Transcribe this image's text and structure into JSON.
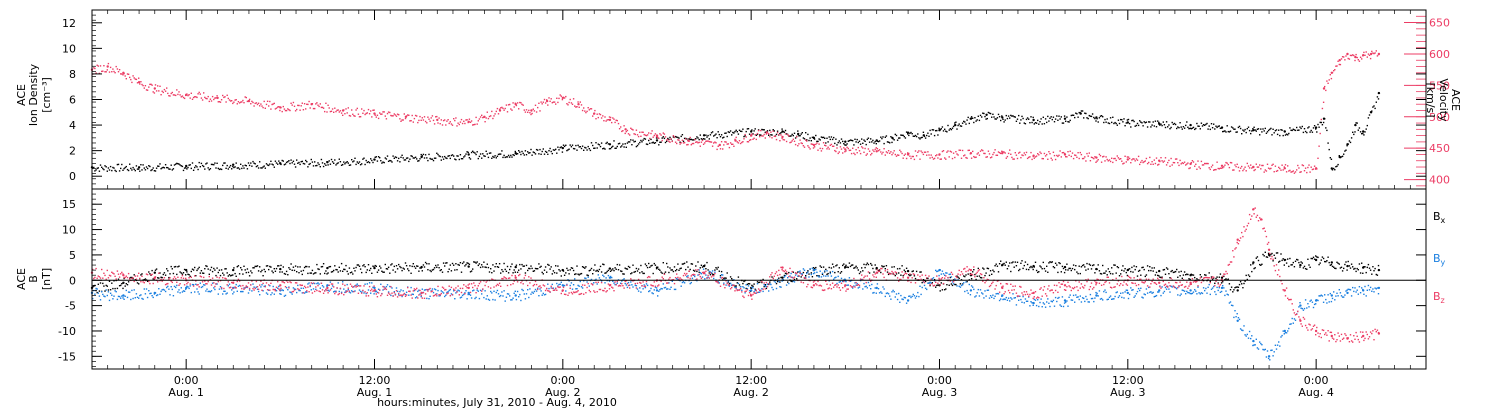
{
  "colors": {
    "black": "#000000",
    "blue": "#1a7fe0",
    "red": "#ec3c64",
    "axis": "#000000"
  },
  "chart_data": [
    {
      "type": "scatter",
      "panel": "top",
      "ylabel_left": [
        "ACE",
        "Ion Density",
        "[cm⁻³]"
      ],
      "ylabel_right": [
        "ACE",
        "Velocity",
        "[km/s]"
      ],
      "xlim_hours": [
        -6,
        79
      ],
      "ylim_left": [
        -1,
        13
      ],
      "ylim_right": [
        385,
        670
      ],
      "yticks_left": [
        0,
        2,
        4,
        6,
        8,
        10,
        12
      ],
      "yticks_right": [
        400,
        450,
        500,
        550,
        600,
        650
      ],
      "series": [
        {
          "axis": "left",
          "color": "black",
          "x": [
            -6,
            -3,
            0,
            3,
            6,
            9,
            12,
            15,
            18,
            21,
            24,
            27,
            30,
            33,
            36,
            38,
            39,
            40,
            42,
            44,
            45,
            46,
            47,
            48,
            49,
            50,
            51,
            52,
            54,
            56,
            57,
            58,
            60,
            62,
            64,
            66,
            68,
            70,
            72,
            72.5,
            73,
            73.5,
            74,
            74.5,
            75,
            75.5,
            76
          ],
          "y": [
            0.7,
            0.7,
            0.8,
            0.9,
            1.0,
            1.1,
            1.3,
            1.5,
            1.7,
            1.8,
            2.2,
            2.5,
            2.8,
            3.2,
            3.5,
            3.5,
            3.3,
            3.0,
            2.7,
            2.8,
            3.0,
            3.4,
            3.2,
            3.6,
            4.0,
            4.5,
            4.8,
            4.6,
            4.4,
            4.5,
            4.9,
            4.6,
            4.2,
            4.1,
            4.0,
            3.8,
            3.6,
            3.5,
            3.8,
            4.5,
            0.6,
            1.5,
            2.5,
            4.0,
            3.5,
            5.0,
            6.5
          ]
        },
        {
          "axis": "right",
          "color": "red",
          "x": [
            -6,
            -5,
            -4,
            -3,
            -2,
            0,
            2,
            4,
            6,
            8,
            10,
            12,
            14,
            16,
            18,
            19,
            20,
            21,
            22,
            23,
            24,
            25,
            26,
            27,
            28,
            30,
            32,
            34,
            35,
            36,
            37,
            38,
            40,
            42,
            44,
            46,
            48,
            50,
            52,
            54,
            56,
            58,
            60,
            62,
            64,
            66,
            68,
            70,
            72,
            72.5,
            73,
            73.5,
            74,
            74.5,
            75,
            75.5,
            76
          ],
          "y": [
            575,
            580,
            570,
            555,
            545,
            535,
            530,
            525,
            515,
            520,
            510,
            505,
            500,
            495,
            492,
            500,
            510,
            520,
            510,
            525,
            530,
            520,
            505,
            495,
            480,
            470,
            462,
            455,
            462,
            470,
            475,
            468,
            455,
            448,
            445,
            440,
            440,
            442,
            442,
            438,
            440,
            435,
            432,
            430,
            425,
            422,
            420,
            418,
            418,
            545,
            570,
            590,
            600,
            595,
            598,
            600,
            600
          ]
        }
      ]
    },
    {
      "type": "scatter",
      "panel": "bottom",
      "ylabel_left": [
        "ACE",
        "B",
        "[nT]"
      ],
      "xlim_hours": [
        -6,
        79
      ],
      "ylim": [
        -17.5,
        18
      ],
      "yticks": [
        -15,
        -10,
        -5,
        0,
        5,
        10,
        15
      ],
      "xticks": [
        {
          "hour": 0,
          "time": "0:00",
          "date": "Aug. 1"
        },
        {
          "hour": 12,
          "time": "12:00",
          "date": "Aug. 1"
        },
        {
          "hour": 24,
          "time": "0:00",
          "date": "Aug. 2"
        },
        {
          "hour": 36,
          "time": "12:00",
          "date": "Aug. 2"
        },
        {
          "hour": 48,
          "time": "0:00",
          "date": "Aug. 3"
        },
        {
          "hour": 60,
          "time": "12:00",
          "date": "Aug. 3"
        },
        {
          "hour": 72,
          "time": "0:00",
          "date": "Aug. 4"
        }
      ],
      "xlabel": "hours:minutes, July 31, 2010 - Aug.  4, 2010",
      "zero_line": 0,
      "series": [
        {
          "name": "Bx",
          "color": "black",
          "x": [
            -6,
            -4,
            -2,
            0,
            3,
            6,
            9,
            12,
            15,
            18,
            21,
            24,
            27,
            30,
            33,
            36,
            38,
            40,
            42,
            44,
            46,
            48,
            50,
            52,
            54,
            56,
            58,
            60,
            62,
            64,
            66,
            67,
            68,
            69,
            70,
            71,
            72,
            73,
            74,
            75,
            76
          ],
          "y": [
            -1.5,
            -0.5,
            1.5,
            2.0,
            2.0,
            2.2,
            2.4,
            2.4,
            2.6,
            2.7,
            2.6,
            2.0,
            2.3,
            2.5,
            2.8,
            -1.5,
            0.5,
            2.0,
            2.6,
            2.4,
            1.8,
            -1.0,
            1.0,
            3.0,
            2.8,
            2.6,
            2.2,
            2.0,
            1.8,
            1.0,
            0.5,
            -2.0,
            3.5,
            5.0,
            4.0,
            3.0,
            4.0,
            3.5,
            2.8,
            2.5,
            2.0
          ]
        },
        {
          "name": "By",
          "color": "blue",
          "x": [
            -6,
            -4,
            -2,
            0,
            3,
            6,
            9,
            12,
            15,
            18,
            21,
            24,
            27,
            30,
            33,
            36,
            38,
            40,
            42,
            44,
            46,
            48,
            50,
            52,
            54,
            56,
            58,
            60,
            62,
            64,
            66,
            67,
            68,
            69,
            70,
            71,
            72,
            73,
            74,
            75,
            76
          ],
          "y": [
            -2.5,
            -3.0,
            -2.5,
            -1.5,
            -1.5,
            -2.0,
            -1.0,
            -1.5,
            -2.5,
            -2.5,
            -3.0,
            -1.0,
            0.5,
            -2.0,
            1.5,
            -2.0,
            0.0,
            2.0,
            0.0,
            -1.5,
            -4.0,
            2.0,
            -2.0,
            -3.0,
            -4.5,
            -4.0,
            -3.0,
            -2.5,
            -2.0,
            -2.0,
            -1.5,
            -8.0,
            -12.0,
            -15.0,
            -10.0,
            -5.0,
            -4.0,
            -3.0,
            -2.5,
            -2.0,
            -1.5
          ]
        },
        {
          "name": "Bz",
          "color": "red",
          "x": [
            -6,
            -4,
            -2,
            0,
            3,
            6,
            9,
            12,
            15,
            18,
            21,
            24,
            27,
            30,
            33,
            36,
            38,
            40,
            42,
            44,
            46,
            48,
            50,
            52,
            54,
            56,
            58,
            60,
            62,
            64,
            66,
            67,
            68,
            68.5,
            69,
            70,
            71,
            72,
            73,
            74,
            75,
            76
          ],
          "y": [
            1.5,
            1.0,
            0.5,
            0.0,
            -0.5,
            -1.0,
            -1.5,
            -2.0,
            -2.5,
            -1.5,
            0.5,
            -2.0,
            -1.0,
            0.0,
            1.5,
            -3.0,
            2.5,
            -1.0,
            -1.0,
            1.5,
            0.5,
            0.0,
            2.0,
            -1.5,
            -2.5,
            -1.0,
            -0.5,
            0.0,
            -0.5,
            -0.5,
            0.0,
            8.0,
            14.0,
            12.0,
            6.0,
            -2.0,
            -8.0,
            -10.0,
            -11.0,
            -11.5,
            -11.0,
            -10.5
          ]
        }
      ]
    }
  ]
}
